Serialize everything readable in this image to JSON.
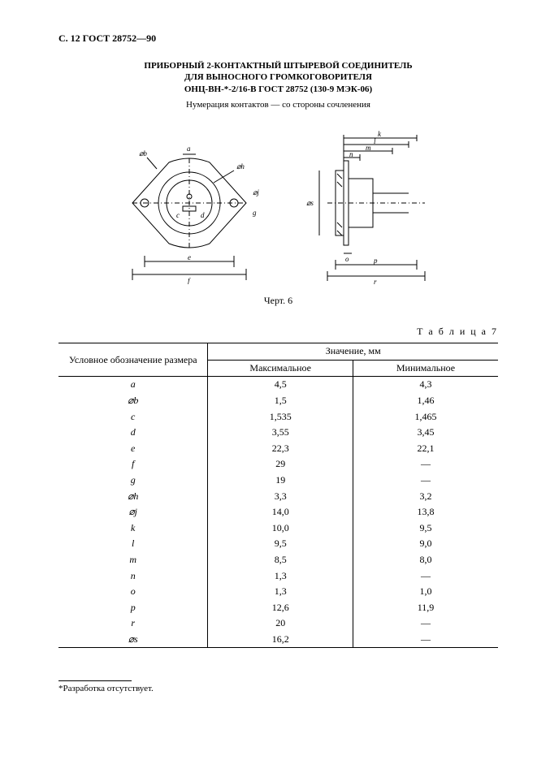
{
  "page_header": "С. 12 ГОСТ 28752—90",
  "title": {
    "line1": "ПРИБОРНЫЙ 2-КОНТАКТНЫЙ ШТЫРЕВОЙ СОЕДИНИТЕЛЬ",
    "line2": "ДЛЯ ВЫНОСНОГО ГРОМКОГОВОРИТЕЛЯ",
    "line3": "ОНЦ-ВН-*-2/16-В ГОСТ 28752 (130-9 МЭК-06)"
  },
  "subtitle": "Нумерация контактов — со стороны сочленения",
  "figure_caption": "Черт. 6",
  "table_label": "Т а б л и ц а   7",
  "table": {
    "head_label": "Условное обозначение размера",
    "head_value": "Значение, мм",
    "head_max": "Максимальное",
    "head_min": "Минимальное",
    "rows": [
      {
        "label": "a",
        "max": "4,5",
        "min": "4,3"
      },
      {
        "label": "⌀b",
        "max": "1,5",
        "min": "1,46"
      },
      {
        "label": "c",
        "max": "1,535",
        "min": "1,465"
      },
      {
        "label": "d",
        "max": "3,55",
        "min": "3,45"
      },
      {
        "label": "e",
        "max": "22,3",
        "min": "22,1"
      },
      {
        "label": "f",
        "max": "29",
        "min": "—"
      },
      {
        "label": "g",
        "max": "19",
        "min": "—"
      },
      {
        "label": "⌀h",
        "max": "3,3",
        "min": "3,2"
      },
      {
        "label": "⌀j",
        "max": "14,0",
        "min": "13,8"
      },
      {
        "label": "k",
        "max": "10,0",
        "min": "9,5"
      },
      {
        "label": "l",
        "max": "9,5",
        "min": "9,0"
      },
      {
        "label": "m",
        "max": "8,5",
        "min": "8,0"
      },
      {
        "label": "n",
        "max": "1,3",
        "min": "—"
      },
      {
        "label": "o",
        "max": "1,3",
        "min": "1,0"
      },
      {
        "label": "p",
        "max": "12,6",
        "min": "11,9"
      },
      {
        "label": "r",
        "max": "20",
        "min": "—"
      },
      {
        "label": "⌀s",
        "max": "16,2",
        "min": "—"
      }
    ]
  },
  "footnote": "*Разработка отсутствует.",
  "colors": {
    "text": "#000000",
    "bg": "#ffffff",
    "rule": "#000000"
  },
  "diagram": {
    "type": "engineering-drawing",
    "left_view": {
      "flange_width_e": 22.3,
      "flange_overall_f": 29,
      "body_dia_j": 14.0,
      "hole_dia_h": 3.3,
      "pin_dia_b": 1.5,
      "pin_spacing_a": 4.5,
      "slot_c": 1.535,
      "slot_d": 3.55,
      "overall_g": 19
    },
    "right_view": {
      "overall_k": 10.0,
      "len_l": 9.5,
      "len_m": 8.5,
      "len_n": 1.3,
      "thk_o": 1.3,
      "dia_s": 16.2,
      "len_p": 12.6,
      "len_r": 20
    },
    "stroke": "#000000",
    "stroke_width": 1
  }
}
